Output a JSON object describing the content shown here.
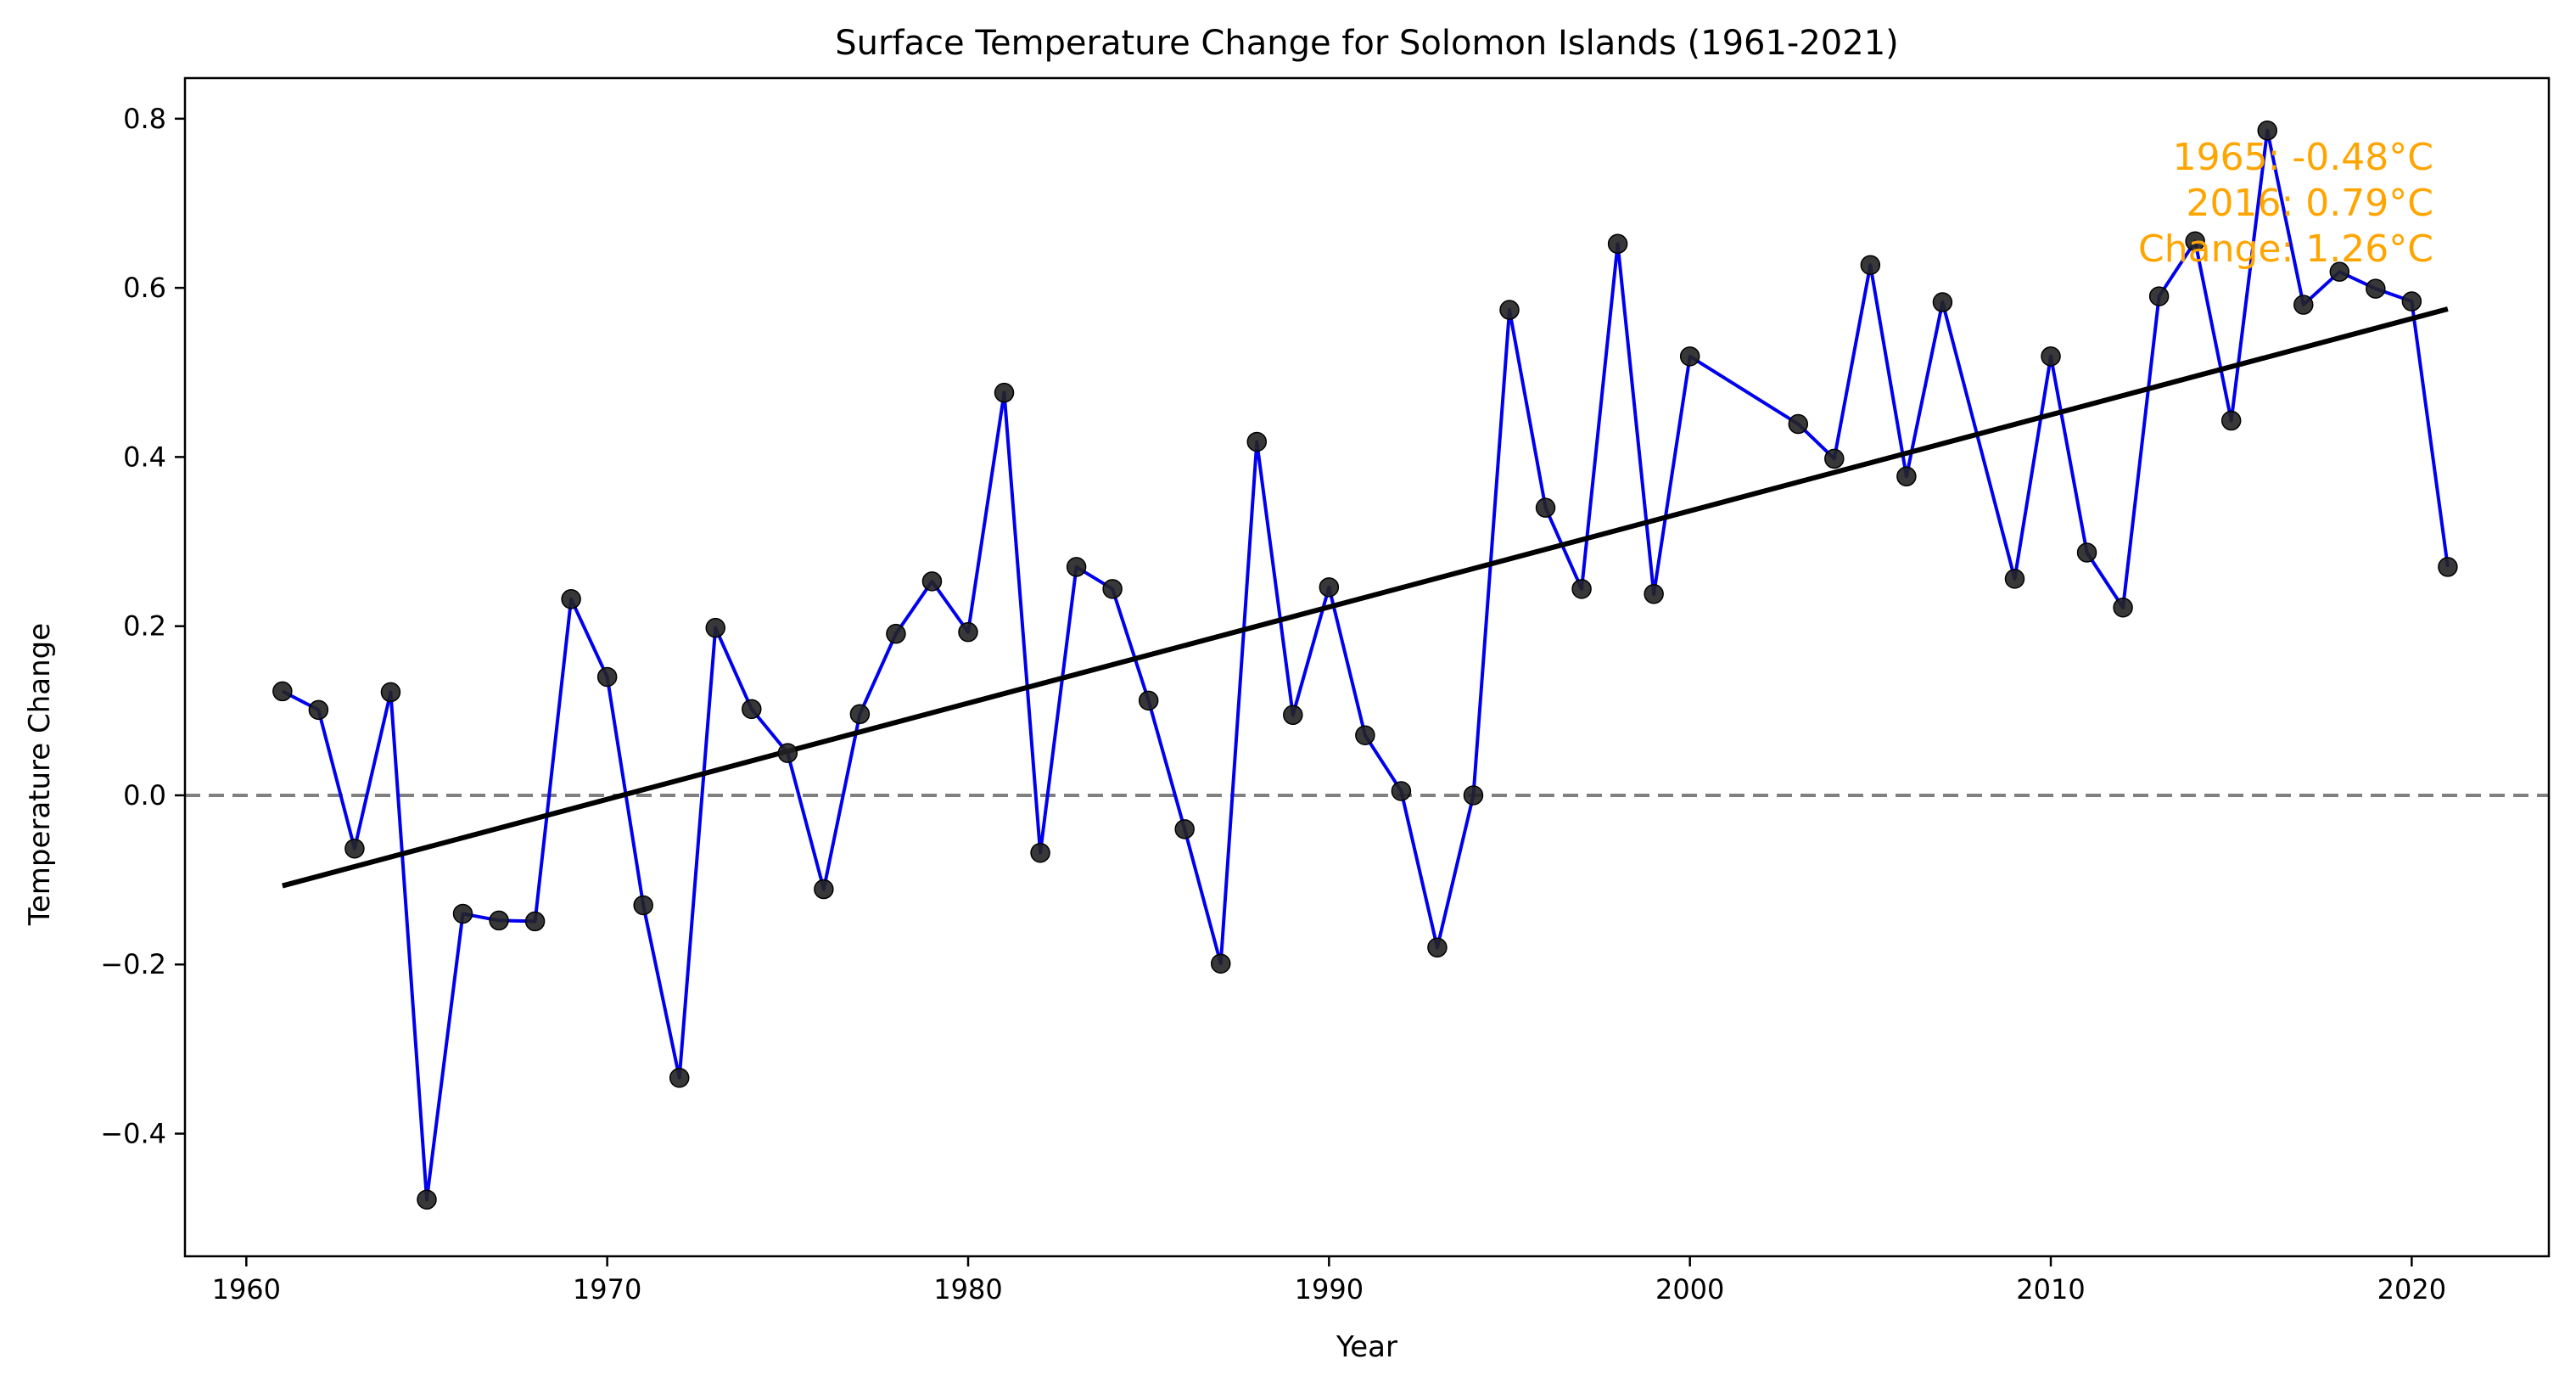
{
  "chart_data": {
    "type": "line",
    "title": "Surface Temperature Change for Solomon Islands (1961-2021)",
    "xlabel": "Year",
    "ylabel": "Temperature Change",
    "xlim": [
      1958.3,
      2023.8
    ],
    "ylim": [
      -0.545,
      0.848
    ],
    "xticks": [
      1960,
      1970,
      1980,
      1990,
      2000,
      2010,
      2020
    ],
    "yticks": [
      -0.4,
      -0.2,
      0.0,
      0.2,
      0.4,
      0.6,
      0.8
    ],
    "ytick_labels": [
      "−0.4",
      "−0.2",
      "0.0",
      "0.2",
      "0.4",
      "0.6",
      "0.8"
    ],
    "grid": false,
    "series": [
      {
        "x": [
          1961,
          1962,
          1963,
          1964,
          1965,
          1966,
          1967,
          1968,
          1969,
          1970,
          1971,
          1972,
          1973,
          1974,
          1975,
          1976,
          1977,
          1978,
          1979,
          1980,
          1981,
          1982,
          1983,
          1984,
          1985,
          1986,
          1987,
          1988,
          1989,
          1990,
          1991,
          1992,
          1993,
          1994,
          1995,
          1996,
          1997,
          1998,
          1999,
          2000,
          2003,
          2004,
          2005,
          2006,
          2007,
          2009,
          2010,
          2011,
          2012,
          2013,
          2014,
          2015,
          2016,
          2017,
          2018,
          2019,
          2020,
          2021
        ],
        "y": [
          0.123,
          0.101,
          -0.063,
          0.122,
          -0.478,
          -0.14,
          -0.148,
          -0.149,
          0.232,
          0.14,
          -0.13,
          -0.334,
          0.198,
          0.102,
          0.05,
          -0.111,
          0.096,
          0.191,
          0.253,
          0.193,
          0.476,
          -0.068,
          0.27,
          0.244,
          0.112,
          -0.04,
          -0.199,
          0.418,
          0.095,
          0.246,
          0.071,
          0.005,
          -0.18,
          0.0,
          0.574,
          0.34,
          0.244,
          0.652,
          0.238,
          0.519,
          0.439,
          0.398,
          0.627,
          0.377,
          0.583,
          0.256,
          0.519,
          0.287,
          0.222,
          0.59,
          0.655,
          0.443,
          0.786,
          0.58,
          0.619,
          0.599,
          0.584,
          0.27
        ],
        "color": "#0000ee",
        "marker_color": "#222222"
      }
    ],
    "trendline": {
      "x": [
        1961,
        2021
      ],
      "y": [
        -0.107,
        0.575
      ],
      "color": "#000000"
    },
    "reference_line": {
      "y": 0.0,
      "style": "dashed",
      "color": "#808080"
    },
    "annotation": {
      "lines": [
        "1965: -0.48°C",
        "2016: 0.79°C",
        "Change: 1.26°C"
      ],
      "color": "#ffa500",
      "placement": "top-right"
    }
  }
}
